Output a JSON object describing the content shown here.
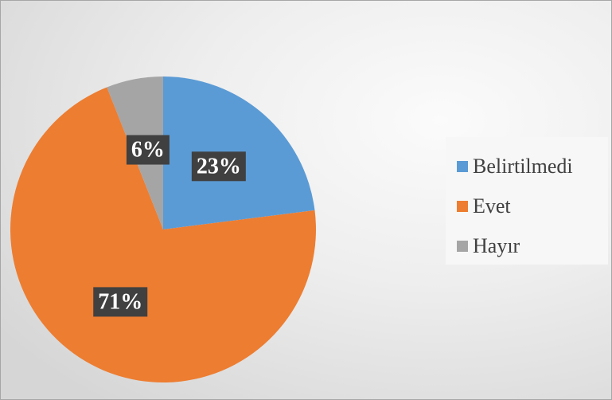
{
  "chart_data": {
    "type": "pie",
    "title": "",
    "start_angle_deg": 0,
    "direction": "clockwise",
    "legend_position": "right",
    "slices": [
      {
        "name": "Belirtilmedi",
        "value": 23,
        "label": "23%",
        "color": "#5B9BD5"
      },
      {
        "name": "Evet",
        "value": 71,
        "label": "71%",
        "color": "#ED7D31"
      },
      {
        "name": "Hayır",
        "value": 6,
        "label": "6%",
        "color": "#A5A5A5"
      }
    ]
  },
  "legend": {
    "items": [
      {
        "label": "Belirtilmedi",
        "color": "#5B9BD5"
      },
      {
        "label": "Evet",
        "color": "#ED7D31"
      },
      {
        "label": "Hayır",
        "color": "#A5A5A5"
      }
    ]
  },
  "label_box_color": "#404040"
}
